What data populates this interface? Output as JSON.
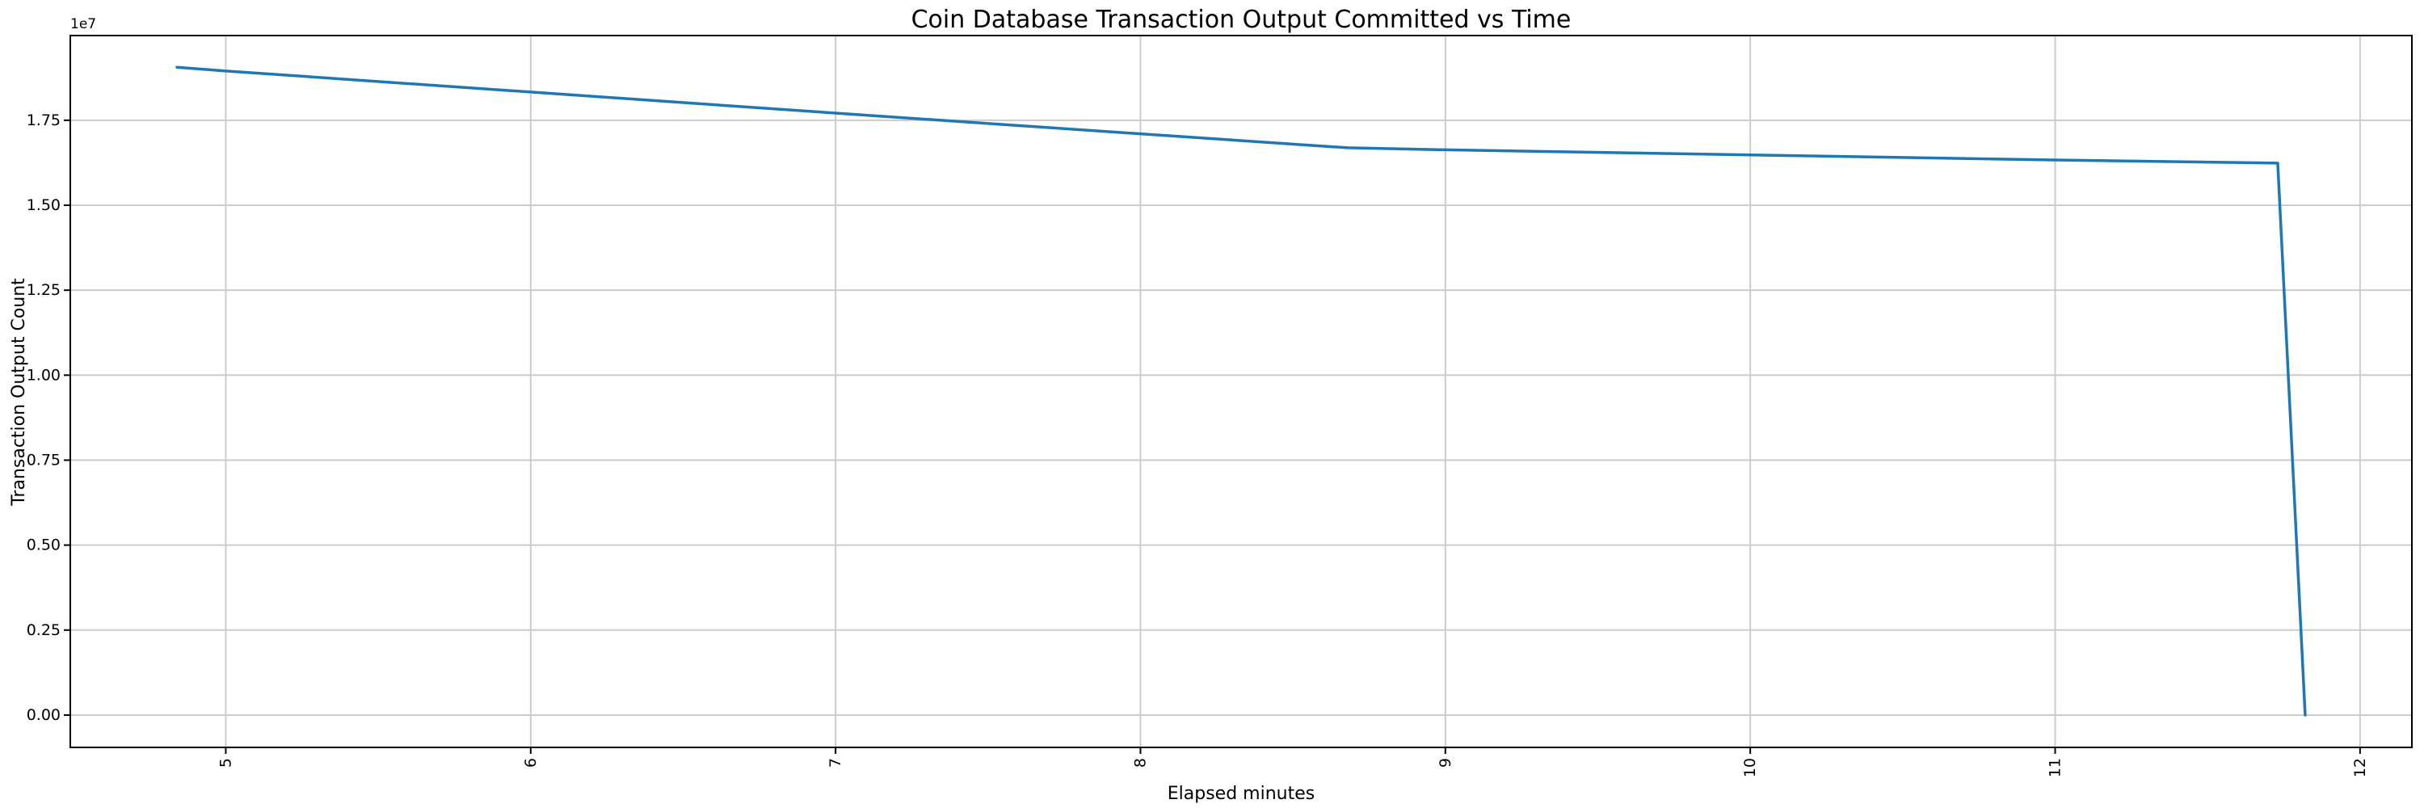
{
  "chart_data": {
    "type": "line",
    "title": "Coin Database Transaction Output Committed vs Time",
    "xlabel": "Elapsed minutes",
    "ylabel": "Transaction Output Count",
    "y_offset_text": "1e7",
    "grid": true,
    "legend": "none",
    "xlim": [
      4.49,
      12.17
    ],
    "ylim": [
      -952000,
      19992000
    ],
    "x_ticks": [
      5,
      6,
      7,
      8,
      9,
      10,
      11,
      12
    ],
    "x_tick_labels": [
      "5",
      "6",
      "7",
      "8",
      "9",
      "10",
      "11",
      "12"
    ],
    "x_tick_rotation_deg": 90,
    "y_ticks": [
      0,
      2500000,
      5000000,
      7500000,
      10000000,
      12500000,
      15000000,
      17500000
    ],
    "y_tick_labels": [
      "0.00",
      "0.25",
      "0.50",
      "0.75",
      "1.00",
      "1.25",
      "1.50",
      "1.75"
    ],
    "colors": {
      "line": "#1f77b4",
      "grid": "#cccccc",
      "spine": "#000000",
      "text": "#000000",
      "background": "#ffffff"
    },
    "series": [
      {
        "name": "transaction-output-count",
        "x": [
          4.84,
          5.0,
          6.0,
          7.0,
          8.0,
          8.68,
          9.0,
          10.0,
          11.0,
          11.73,
          11.82
        ],
        "y": [
          19060000,
          18950000,
          18330000,
          17710000,
          17100000,
          16690000,
          16630000,
          16480000,
          16330000,
          16240000,
          0
        ]
      }
    ]
  }
}
